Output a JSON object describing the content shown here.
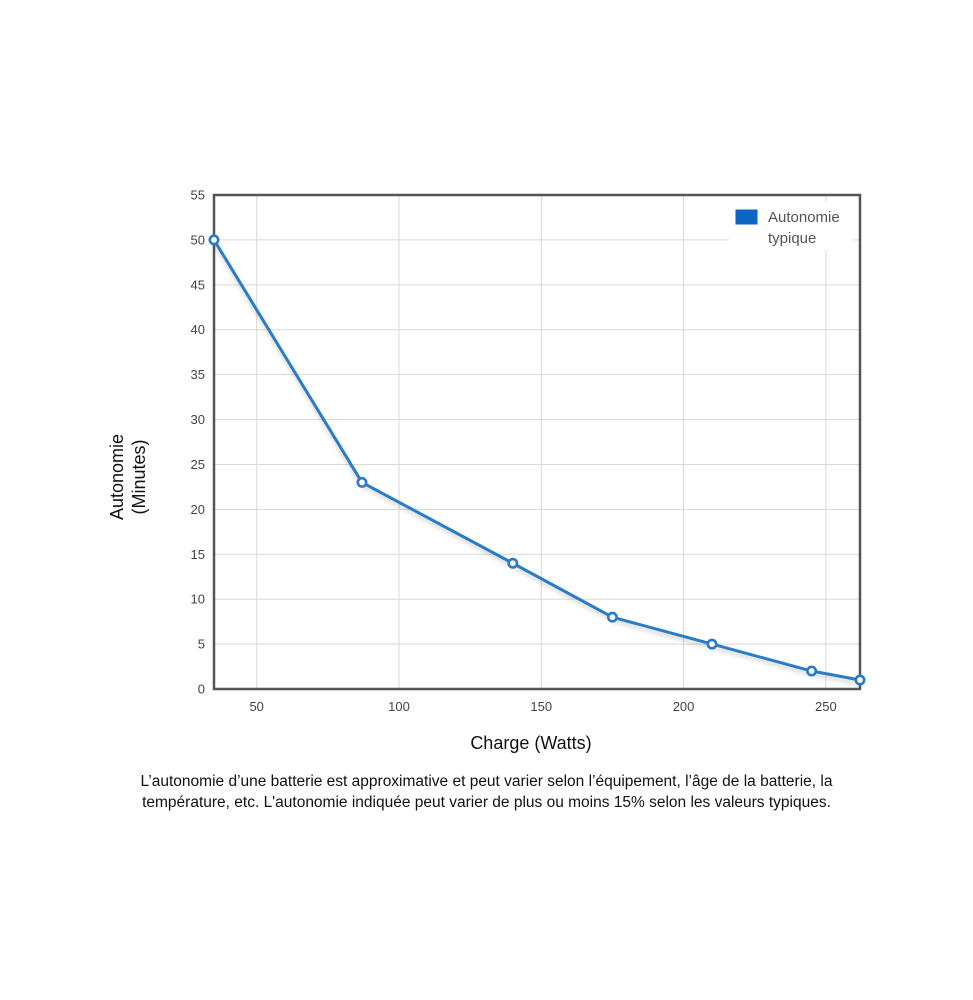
{
  "chart_data": {
    "type": "line",
    "title": "",
    "xlabel": "Charge (Watts)",
    "ylabel_lines": [
      "Autonomie",
      "(Minutes)"
    ],
    "xlim": [
      35,
      262
    ],
    "ylim": [
      0,
      55
    ],
    "x_ticks": [
      50,
      100,
      150,
      200,
      250
    ],
    "y_ticks": [
      0,
      5,
      10,
      15,
      20,
      25,
      30,
      35,
      40,
      45,
      50,
      55
    ],
    "grid": true,
    "legend_position": "top-right",
    "series": [
      {
        "name_lines": [
          "Autonomie",
          "typique"
        ],
        "color": "#2a7bc6",
        "x": [
          35,
          87,
          140,
          175,
          210,
          245,
          262
        ],
        "y": [
          50,
          23,
          14,
          8,
          5,
          2,
          1
        ]
      }
    ]
  },
  "note": {
    "line1": "L’autonomie d’une batterie est approximative et peut varier selon l’équipement, l’âge de la batterie, la",
    "line2": "température, etc. L'autonomie indiquée peut varier de plus ou moins 15% selon les valeurs typiques."
  }
}
